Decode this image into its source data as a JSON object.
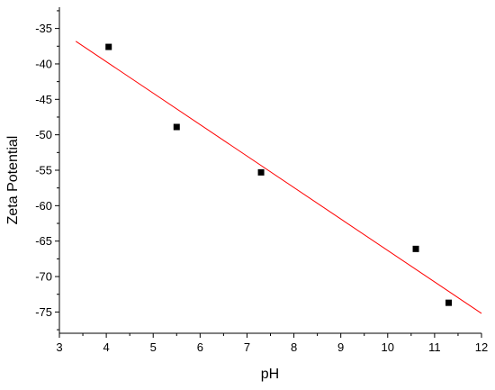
{
  "chart_data": {
    "type": "scatter",
    "title": "",
    "xlabel": "pH",
    "ylabel": "Zeta Potential",
    "xlim": [
      3,
      12
    ],
    "ylim": [
      -78,
      -32
    ],
    "xticks": [
      3,
      4,
      5,
      6,
      7,
      8,
      9,
      10,
      11,
      12
    ],
    "yticks": [
      -35,
      -40,
      -45,
      -50,
      -55,
      -60,
      -65,
      -70,
      -75
    ],
    "grid": false,
    "legend": "none",
    "series": [
      {
        "type": "scatter",
        "marker": "square",
        "color": "#000000",
        "x": [
          4.05,
          5.5,
          7.3,
          10.6,
          11.3
        ],
        "y": [
          -37.6,
          -48.9,
          -55.3,
          -66.1,
          -73.7
        ]
      },
      {
        "type": "line",
        "role": "linear-fit",
        "color": "#ff0000",
        "x": [
          3.35,
          12.0
        ],
        "y": [
          -36.8,
          -75.2
        ]
      }
    ]
  }
}
